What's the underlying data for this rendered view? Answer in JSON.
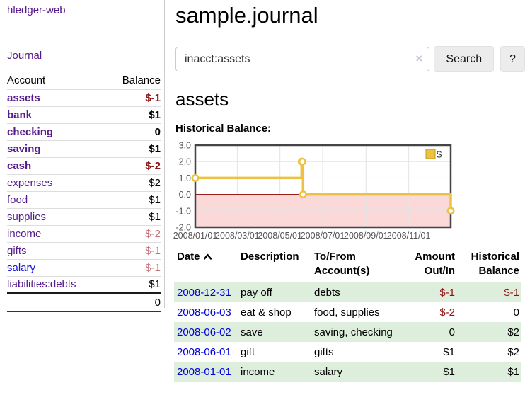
{
  "sidebar": {
    "app_title": "hledger-web",
    "journal_link": "Journal",
    "accounts_table": {
      "account_header": "Account",
      "balance_header": "Balance",
      "rows": [
        {
          "name": "assets",
          "balance": "$-1",
          "indent": 1,
          "bold": true,
          "balance_color": "negative"
        },
        {
          "name": "bank",
          "balance": "$1",
          "indent": 2,
          "bold": true,
          "balance_color": "normal"
        },
        {
          "name": "checking",
          "balance": "0",
          "indent": 3,
          "bold": true,
          "balance_color": "normal"
        },
        {
          "name": "saving",
          "balance": "$1",
          "indent": 3,
          "bold": true,
          "balance_color": "normal"
        },
        {
          "name": "cash",
          "balance": "$-2",
          "indent": 2,
          "bold": true,
          "balance_color": "negative"
        },
        {
          "name": "expenses",
          "balance": "$2",
          "indent": 1,
          "bold": false,
          "balance_color": "normal"
        },
        {
          "name": "food",
          "balance": "$1",
          "indent": 2,
          "bold": false,
          "balance_color": "normal"
        },
        {
          "name": "supplies",
          "balance": "$1",
          "indent": 2,
          "bold": false,
          "balance_color": "normal"
        },
        {
          "name": "income",
          "balance": "$-2",
          "indent": 1,
          "bold": false,
          "balance_color": "muted"
        },
        {
          "name": "gifts",
          "balance": "$-1",
          "indent": 2,
          "bold": false,
          "balance_color": "muted"
        },
        {
          "name": "salary",
          "balance": "$-1",
          "indent": 2,
          "bold": false,
          "balance_color": "muted",
          "link_color": "blue"
        },
        {
          "name": "liabilities:debts",
          "balance": "$1",
          "indent": 1,
          "bold": false,
          "balance_color": "normal"
        }
      ],
      "total": "0"
    }
  },
  "header": {
    "title": "sample.journal",
    "search": {
      "value": "inacct:assets",
      "clear_icon": "×",
      "button_label": "Search",
      "help_label": "?"
    }
  },
  "main": {
    "account_heading": "assets",
    "chart_label": "Historical Balance:"
  },
  "chart_data": {
    "type": "line",
    "title": "Historical Balance:",
    "series": [
      {
        "name": "$",
        "color": "#edc240",
        "steps": true,
        "points": [
          {
            "date": "2008-01-01",
            "value": 1
          },
          {
            "date": "2008-06-01",
            "value": 2
          },
          {
            "date": "2008-06-02",
            "value": 2
          },
          {
            "date": "2008-06-03",
            "value": 0
          },
          {
            "date": "2008-12-31",
            "value": -1
          }
        ]
      }
    ],
    "xlim": [
      "2008-01-01",
      "2008-12-31"
    ],
    "ylim": [
      -2,
      3
    ],
    "x_ticks": [
      "2008/01/01",
      "2008/03/01",
      "2008/05/01",
      "2008/07/01",
      "2008/09/01",
      "2008/11/01"
    ],
    "y_ticks": [
      "3.0",
      "2.0",
      "1.0",
      "0.0",
      "-1.0",
      "-2.0"
    ],
    "grid": true,
    "legend_position": "top-right",
    "negative_region_fill": "#fbd9d9",
    "zero_line_color": "#8b0000",
    "border_color": "#444444",
    "gridline_color": "#e4e4e4",
    "tick_text_color": "#545454"
  },
  "register": {
    "headers": {
      "date": "Date",
      "description": "Description",
      "accounts": "To/From Account(s)",
      "amount": "Amount Out/In",
      "balance": "Historical Balance"
    },
    "rows": [
      {
        "date": "2008-12-31",
        "description": "pay off",
        "accounts": "debts",
        "amount": "$-1",
        "amount_negative": true,
        "balance": "$-1",
        "balance_negative": true
      },
      {
        "date": "2008-06-03",
        "description": "eat & shop",
        "accounts": "food, supplies",
        "amount": "$-2",
        "amount_negative": true,
        "balance": "0",
        "balance_negative": false
      },
      {
        "date": "2008-06-02",
        "description": "save",
        "accounts": "saving, checking",
        "amount": "0",
        "amount_negative": false,
        "balance": "$2",
        "balance_negative": false
      },
      {
        "date": "2008-06-01",
        "description": "gift",
        "accounts": "gifts",
        "amount": "$1",
        "amount_negative": false,
        "balance": "$2",
        "balance_negative": false
      },
      {
        "date": "2008-01-01",
        "description": "income",
        "accounts": "salary",
        "amount": "$1",
        "amount_negative": false,
        "balance": "$1",
        "balance_negative": false
      }
    ]
  },
  "colors": {
    "link_purple": "#551a8b",
    "link_blue": "#0000e0",
    "negative_dark_red": "#8e1414",
    "negative_muted_rose": "#c4737b",
    "row_stripe_green": "#ddeedd",
    "chart_line_gold": "#edc240"
  }
}
